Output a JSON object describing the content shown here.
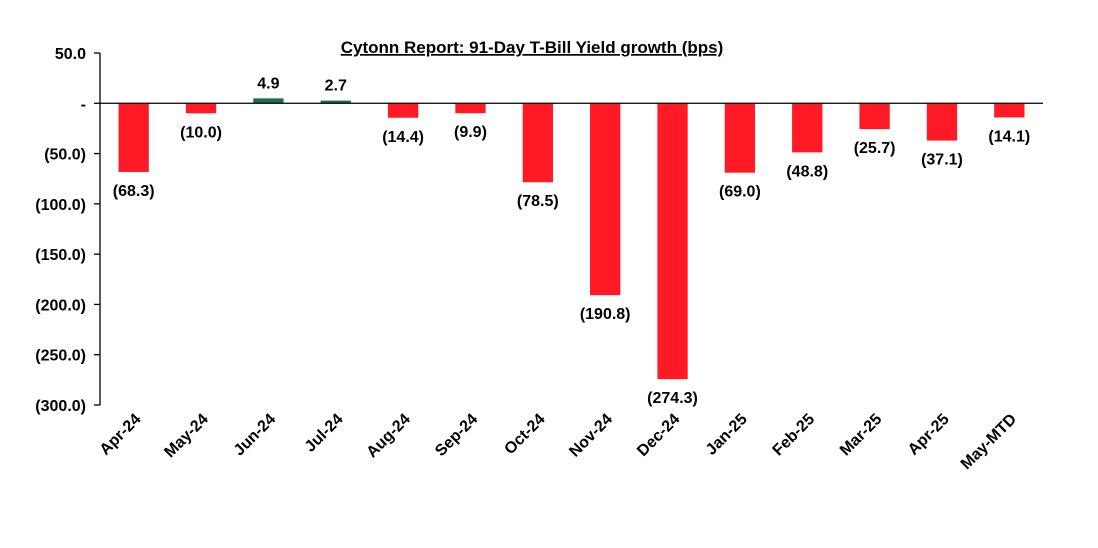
{
  "chart_data": {
    "type": "bar",
    "title": "Cytonn Report:  91-Day T-Bill Yield growth (bps)",
    "xlabel": "",
    "ylabel": "",
    "ylim": [
      -300,
      50
    ],
    "yticks": [
      50,
      0,
      -50,
      -100,
      -150,
      -200,
      -250,
      -300
    ],
    "ytick_labels": [
      "50.0",
      "-",
      "(50.0)",
      "(100.0)",
      "(150.0)",
      "(200.0)",
      "(250.0)",
      "(300.0)"
    ],
    "categories": [
      "Apr-24",
      "May-24",
      "Jun-24",
      "Jul-24",
      "Aug-24",
      "Sep-24",
      "Oct-24",
      "Nov-24",
      "Dec-24",
      "Jan-25",
      "Feb-25",
      "Mar-25",
      "Apr-25",
      "May-MTD"
    ],
    "values": [
      -68.3,
      -10.0,
      4.9,
      2.7,
      -14.4,
      -9.9,
      -78.5,
      -190.8,
      -274.3,
      -69.0,
      -48.8,
      -25.7,
      -37.1,
      -14.1
    ],
    "data_labels": [
      "(68.3)",
      "(10.0)",
      "4.9",
      "2.7",
      "(14.4)",
      "(9.9)",
      "(78.5)",
      "(190.8)",
      "(274.3)",
      "(69.0)",
      "(48.8)",
      "(25.7)",
      "(37.1)",
      "(14.1)"
    ],
    "colors": {
      "negative": "#ff1a25",
      "positive": "#1f6b52",
      "axis": "#000000"
    },
    "grid": false,
    "legend": "none"
  }
}
